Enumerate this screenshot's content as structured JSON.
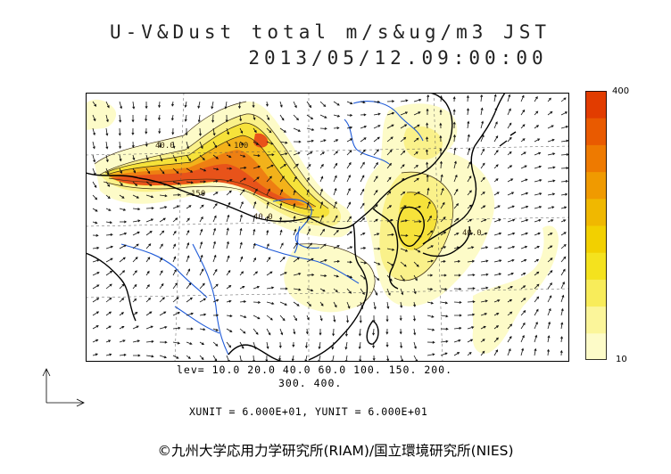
{
  "title": {
    "line1": "U-V&Dust total m/s&ug/m3 JST",
    "line2": "2013/05/12.09:00:00"
  },
  "map": {
    "contour_labels": [
      "40.0",
      "150",
      "40.0",
      "100",
      "40.0"
    ],
    "colors": {
      "ocean": "#ffffff",
      "land_border": "#000000",
      "rivers": "#1e5ad8",
      "contour": "#3a2a10"
    }
  },
  "legend": {
    "max_label": "400",
    "min_label": "10",
    "levels": [
      10,
      20,
      40,
      60,
      100,
      150,
      200,
      300,
      400
    ],
    "colors": [
      "#fdfbc8",
      "#fbf59a",
      "#f8ec5a",
      "#f4e21e",
      "#f2d000",
      "#f0b800",
      "#f09a00",
      "#ee7a00",
      "#e95a00",
      "#e23c00"
    ]
  },
  "lev_line1": "lev= 10.0 20.0 40.0 60.0 100. 150. 200.",
  "lev_line2": "300. 400.",
  "units": "XUNIT = 6.000E+01, YUNIT = 6.000E+01",
  "credit": "©九州大学応用力学研究所(RIAM)/国立環境研究所(NIES)"
}
